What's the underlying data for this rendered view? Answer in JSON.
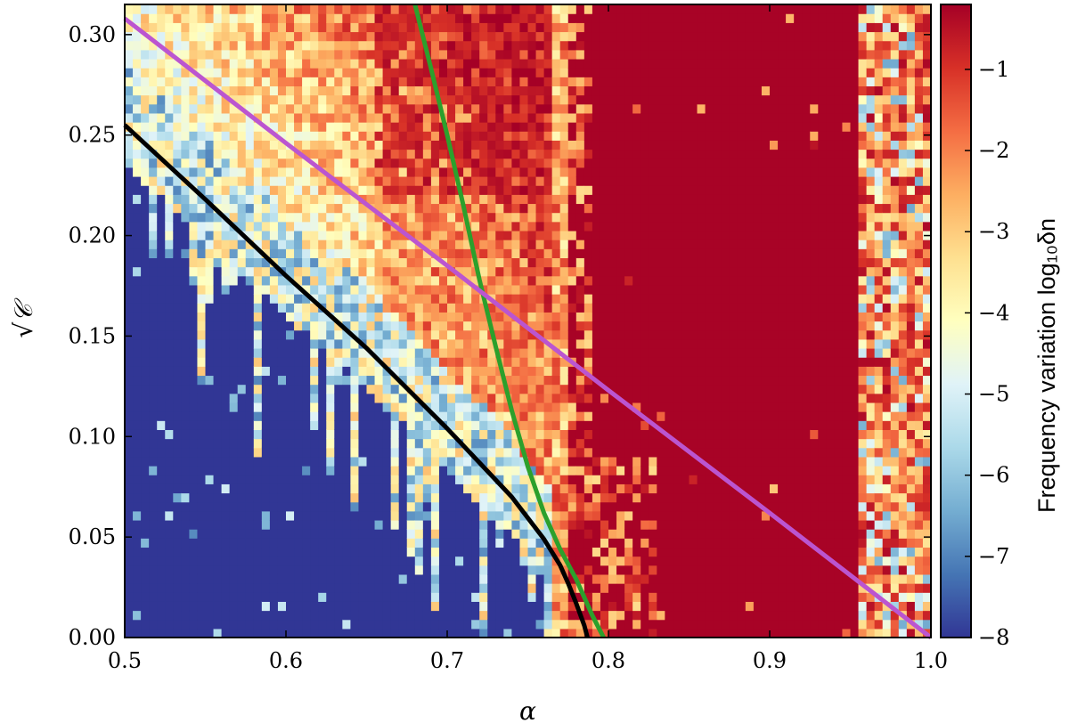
{
  "chart_data": {
    "type": "heatmap",
    "xlabel": "α",
    "ylabel": "√𝒞",
    "xlim": [
      0.5,
      1.0
    ],
    "ylim": [
      0.0,
      0.315
    ],
    "xticks": [
      "0.5",
      "0.6",
      "0.7",
      "0.8",
      "0.9",
      "1.0"
    ],
    "yticks": [
      "0.00",
      "0.05",
      "0.10",
      "0.15",
      "0.20",
      "0.25",
      "0.30"
    ],
    "grid": false,
    "colorbar": {
      "label": "Frequency variation log₁₀δn",
      "range": [
        -8,
        -0.2
      ],
      "ticks": [
        "−1",
        "−2",
        "−3",
        "−4",
        "−5",
        "−6",
        "−7",
        "−8"
      ],
      "colormap": [
        "#313695",
        "#4575b4",
        "#74add1",
        "#abd9e9",
        "#e0f3f8",
        "#ffffbf",
        "#fee090",
        "#fdae61",
        "#f46d43",
        "#d73027",
        "#a50026"
      ]
    },
    "grid_resolution": {
      "nx": 100,
      "ny": 70
    },
    "regions": {
      "chaotic_band_1": [
        0.64,
        0.775
      ],
      "chaotic_band_2": [
        0.775,
        0.955
      ],
      "chaotic_band_3": [
        0.955,
        1.0
      ]
    },
    "series": [
      {
        "color": "#000000",
        "x": [
          0.5,
          0.55,
          0.6,
          0.65,
          0.7,
          0.72,
          0.74,
          0.76,
          0.77,
          0.775,
          0.78,
          0.785,
          0.787
        ],
        "y": [
          0.255,
          0.218,
          0.18,
          0.144,
          0.104,
          0.087,
          0.07,
          0.049,
          0.036,
          0.027,
          0.017,
          0.006,
          0.0
        ]
      },
      {
        "color": "#2ca02c",
        "x": [
          0.68,
          0.69,
          0.7,
          0.71,
          0.72,
          0.73,
          0.74,
          0.75,
          0.76,
          0.77,
          0.78,
          0.79,
          0.797
        ],
        "y": [
          0.315,
          0.283,
          0.25,
          0.215,
          0.178,
          0.145,
          0.113,
          0.085,
          0.062,
          0.044,
          0.029,
          0.011,
          0.0
        ]
      },
      {
        "color": "#bb55d0",
        "x": [
          0.5,
          0.6,
          0.7,
          0.8,
          0.9,
          0.95,
          1.0
        ],
        "y": [
          0.308,
          0.246,
          0.185,
          0.123,
          0.062,
          0.031,
          0.0
        ]
      }
    ]
  }
}
